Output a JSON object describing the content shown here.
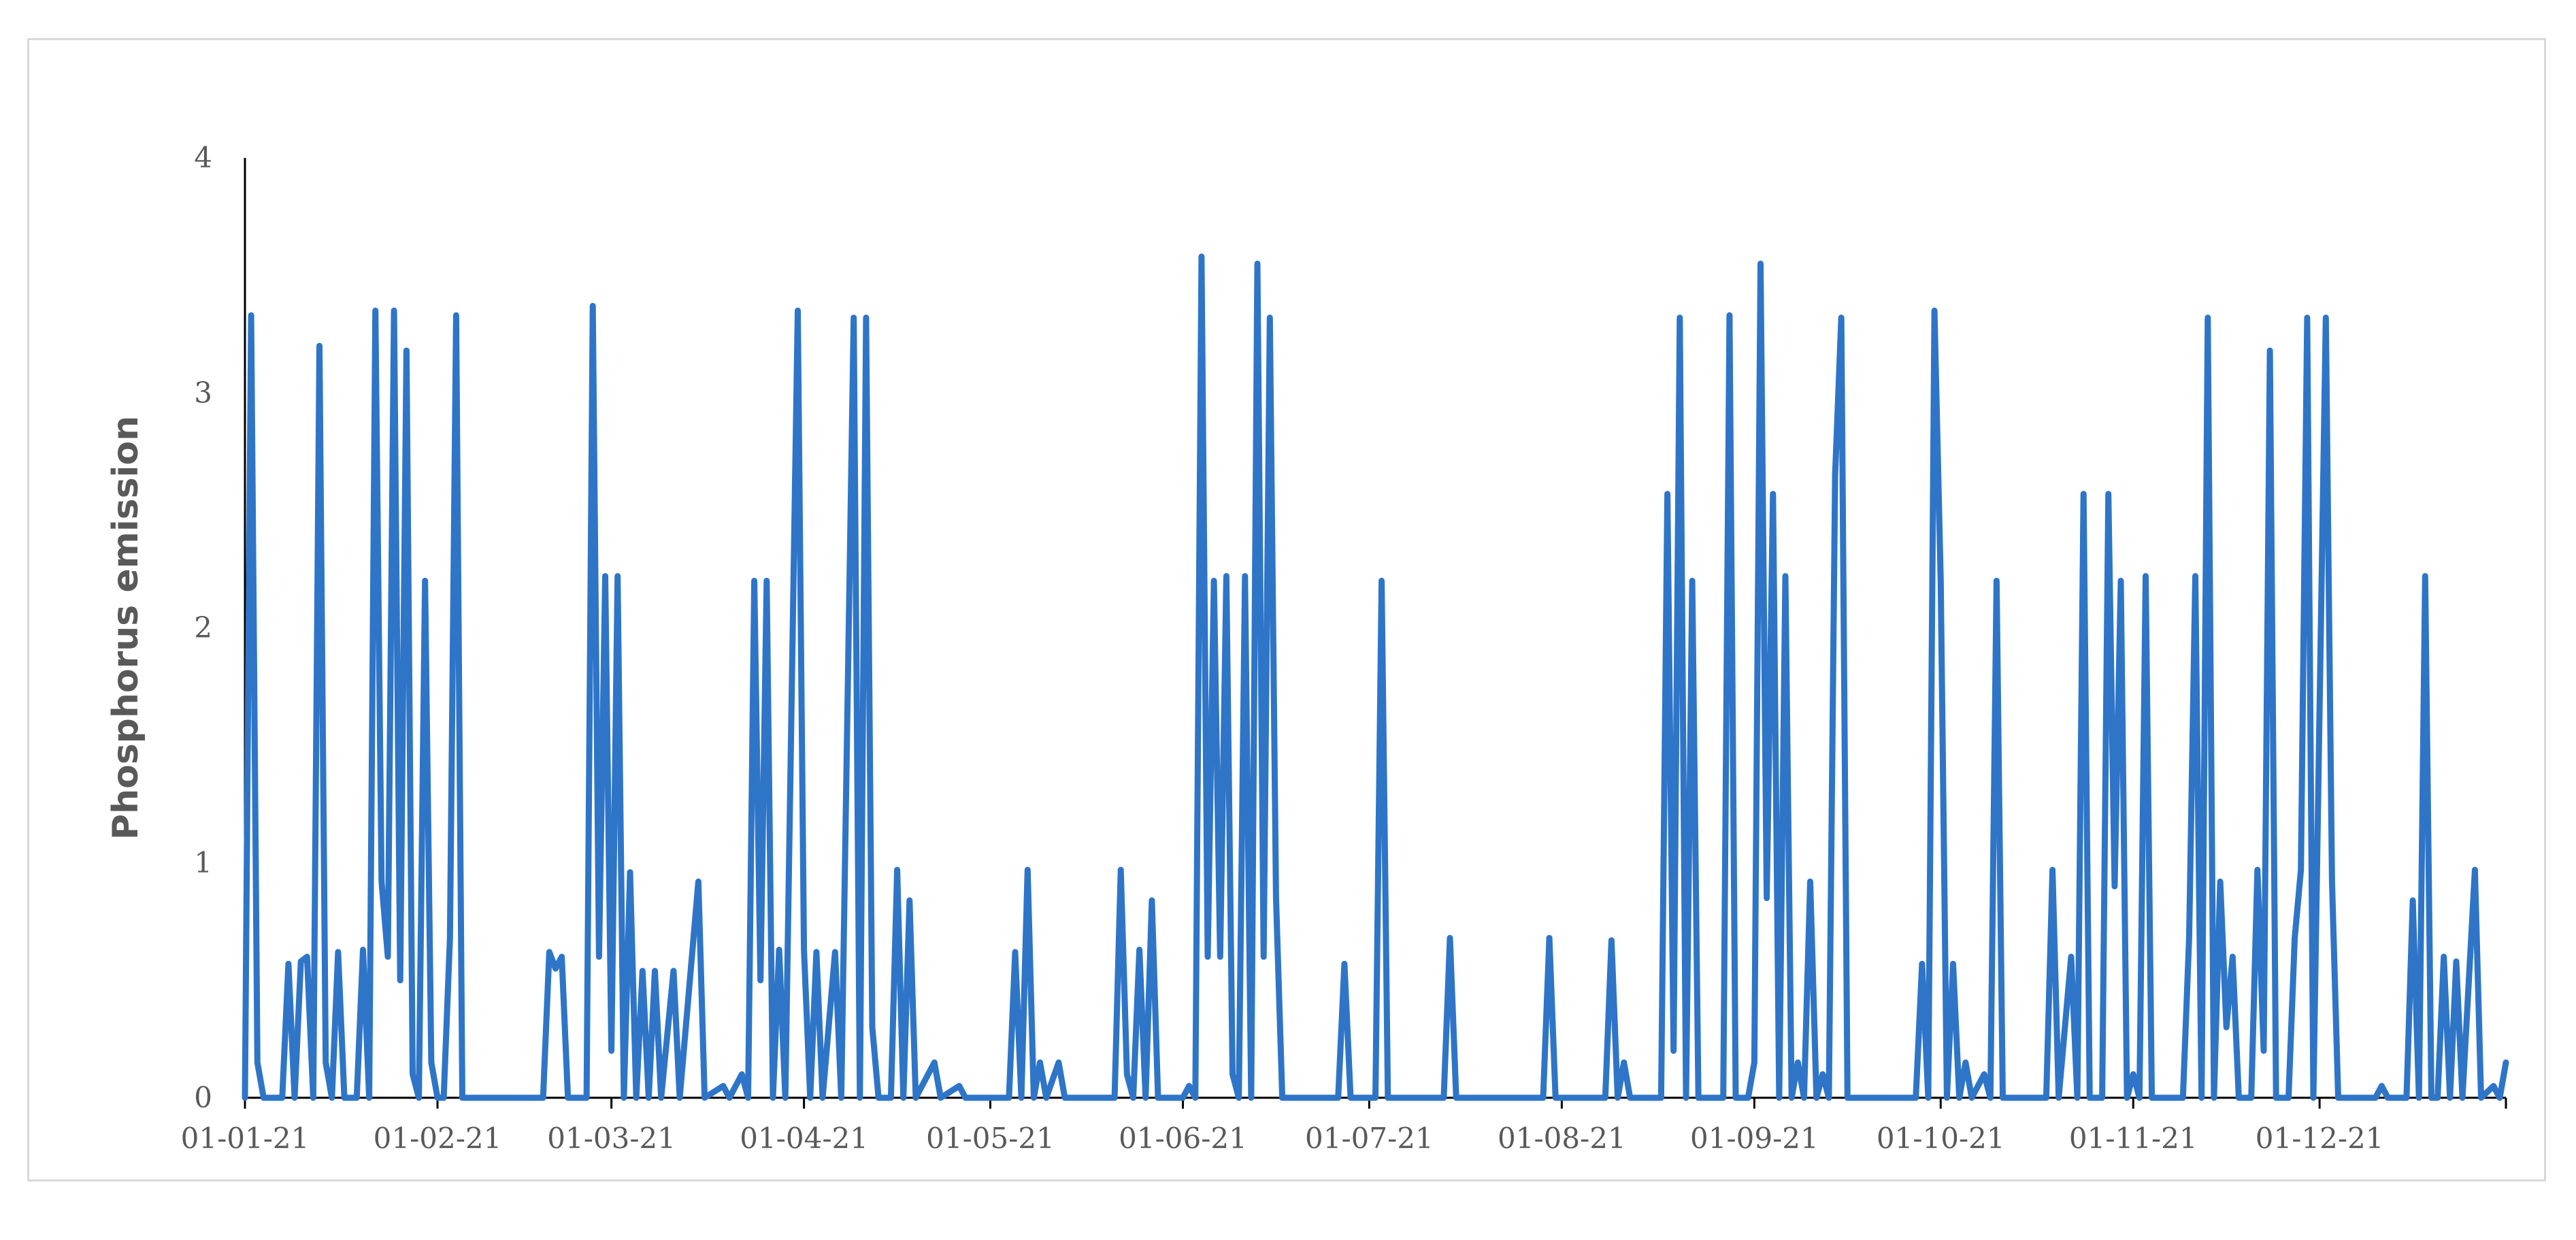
{
  "chart_data": {
    "type": "line",
    "title": "",
    "xlabel": "",
    "ylabel": "Phosphorus emission",
    "ylim": [
      0,
      4
    ],
    "yticks": [
      0,
      1,
      2,
      3,
      4
    ],
    "xlim": [
      "2021-01-01",
      "2021-12-31"
    ],
    "xticks": [
      "2021-01-01",
      "2021-02-01",
      "2021-03-01",
      "2021-04-01",
      "2021-05-01",
      "2021-06-01",
      "2021-07-01",
      "2021-08-01",
      "2021-09-01",
      "2021-10-01",
      "2021-11-01",
      "2021-12-01"
    ],
    "xtick_labels": [
      "01-01-21",
      "01-02-21",
      "01-03-21",
      "01-04-21",
      "01-05-21",
      "01-06-21",
      "01-07-21",
      "01-08-21",
      "01-09-21",
      "01-10-21",
      "01-11-21",
      "01-12-21"
    ],
    "grid": false,
    "legend": "none",
    "series": [
      {
        "color": "#2e75c8",
        "points": [
          [
            "2021-01-01",
            0
          ],
          [
            "2021-01-02",
            3.33
          ],
          [
            "2021-01-03",
            0.15
          ],
          [
            "2021-01-04",
            0
          ],
          [
            "2021-01-07",
            0
          ],
          [
            "2021-01-08",
            0.57
          ],
          [
            "2021-01-09",
            0
          ],
          [
            "2021-01-10",
            0.58
          ],
          [
            "2021-01-11",
            0.6
          ],
          [
            "2021-01-12",
            0
          ],
          [
            "2021-01-13",
            3.2
          ],
          [
            "2021-01-14",
            0.15
          ],
          [
            "2021-01-15",
            0
          ],
          [
            "2021-01-16",
            0.62
          ],
          [
            "2021-01-17",
            0
          ],
          [
            "2021-01-19",
            0
          ],
          [
            "2021-01-20",
            0.63
          ],
          [
            "2021-01-21",
            0
          ],
          [
            "2021-01-22",
            3.35
          ],
          [
            "2021-01-23",
            0.92
          ],
          [
            "2021-01-24",
            0.6
          ],
          [
            "2021-01-25",
            3.35
          ],
          [
            "2021-01-26",
            0.5
          ],
          [
            "2021-01-27",
            3.18
          ],
          [
            "2021-01-28",
            0.1
          ],
          [
            "2021-01-29",
            0
          ],
          [
            "2021-01-30",
            2.2
          ],
          [
            "2021-01-31",
            0.15
          ],
          [
            "2021-02-01",
            0
          ],
          [
            "2021-02-02",
            0
          ],
          [
            "2021-02-03",
            0.68
          ],
          [
            "2021-02-04",
            3.33
          ],
          [
            "2021-02-05",
            0
          ],
          [
            "2021-02-18",
            0
          ],
          [
            "2021-02-19",
            0.62
          ],
          [
            "2021-02-20",
            0.55
          ],
          [
            "2021-02-21",
            0.6
          ],
          [
            "2021-02-22",
            0
          ],
          [
            "2021-02-25",
            0
          ],
          [
            "2021-02-26",
            3.37
          ],
          [
            "2021-02-27",
            0.6
          ],
          [
            "2021-02-28",
            2.22
          ],
          [
            "2021-03-01",
            0.2
          ],
          [
            "2021-03-02",
            2.22
          ],
          [
            "2021-03-03",
            0
          ],
          [
            "2021-03-04",
            0.96
          ],
          [
            "2021-03-05",
            0
          ],
          [
            "2021-03-06",
            0.54
          ],
          [
            "2021-03-07",
            0
          ],
          [
            "2021-03-08",
            0.54
          ],
          [
            "2021-03-09",
            0
          ],
          [
            "2021-03-11",
            0.54
          ],
          [
            "2021-03-12",
            0
          ],
          [
            "2021-03-15",
            0.92
          ],
          [
            "2021-03-16",
            0
          ],
          [
            "2021-03-19",
            0.05
          ],
          [
            "2021-03-20",
            0
          ],
          [
            "2021-03-22",
            0.1
          ],
          [
            "2021-03-23",
            0
          ],
          [
            "2021-03-24",
            2.2
          ],
          [
            "2021-03-25",
            0.5
          ],
          [
            "2021-03-26",
            2.2
          ],
          [
            "2021-03-27",
            0
          ],
          [
            "2021-03-28",
            0.63
          ],
          [
            "2021-03-29",
            0
          ],
          [
            "2021-03-31",
            3.35
          ],
          [
            "2021-04-01",
            0.63
          ],
          [
            "2021-04-02",
            0
          ],
          [
            "2021-04-03",
            0.62
          ],
          [
            "2021-04-04",
            0
          ],
          [
            "2021-04-06",
            0.62
          ],
          [
            "2021-04-07",
            0
          ],
          [
            "2021-04-09",
            3.32
          ],
          [
            "2021-04-10",
            0
          ],
          [
            "2021-04-11",
            3.32
          ],
          [
            "2021-04-12",
            0.3
          ],
          [
            "2021-04-13",
            0
          ],
          [
            "2021-04-15",
            0
          ],
          [
            "2021-04-16",
            0.97
          ],
          [
            "2021-04-17",
            0
          ],
          [
            "2021-04-18",
            0.84
          ],
          [
            "2021-04-19",
            0
          ],
          [
            "2021-04-22",
            0.15
          ],
          [
            "2021-04-23",
            0
          ],
          [
            "2021-04-26",
            0.05
          ],
          [
            "2021-04-27",
            0
          ],
          [
            "2021-05-04",
            0
          ],
          [
            "2021-05-05",
            0.62
          ],
          [
            "2021-05-06",
            0
          ],
          [
            "2021-05-07",
            0.97
          ],
          [
            "2021-05-08",
            0
          ],
          [
            "2021-05-09",
            0.15
          ],
          [
            "2021-05-10",
            0
          ],
          [
            "2021-05-12",
            0.15
          ],
          [
            "2021-05-13",
            0
          ],
          [
            "2021-05-21",
            0
          ],
          [
            "2021-05-22",
            0.97
          ],
          [
            "2021-05-23",
            0.1
          ],
          [
            "2021-05-24",
            0
          ],
          [
            "2021-05-25",
            0.63
          ],
          [
            "2021-05-26",
            0
          ],
          [
            "2021-05-27",
            0.84
          ],
          [
            "2021-05-28",
            0
          ],
          [
            "2021-06-01",
            0
          ],
          [
            "2021-06-02",
            0.05
          ],
          [
            "2021-06-03",
            0
          ],
          [
            "2021-06-04",
            3.58
          ],
          [
            "2021-06-05",
            0.6
          ],
          [
            "2021-06-06",
            2.2
          ],
          [
            "2021-06-07",
            0.6
          ],
          [
            "2021-06-08",
            2.22
          ],
          [
            "2021-06-09",
            0.1
          ],
          [
            "2021-06-10",
            0
          ],
          [
            "2021-06-11",
            2.22
          ],
          [
            "2021-06-12",
            0
          ],
          [
            "2021-06-13",
            3.55
          ],
          [
            "2021-06-14",
            0.6
          ],
          [
            "2021-06-15",
            3.32
          ],
          [
            "2021-06-16",
            0.85
          ],
          [
            "2021-06-17",
            0
          ],
          [
            "2021-06-26",
            0
          ],
          [
            "2021-06-27",
            0.57
          ],
          [
            "2021-06-28",
            0
          ],
          [
            "2021-07-02",
            0
          ],
          [
            "2021-07-03",
            2.2
          ],
          [
            "2021-07-04",
            0
          ],
          [
            "2021-07-13",
            0
          ],
          [
            "2021-07-14",
            0.68
          ],
          [
            "2021-07-15",
            0
          ],
          [
            "2021-07-29",
            0
          ],
          [
            "2021-07-30",
            0.68
          ],
          [
            "2021-07-31",
            0
          ],
          [
            "2021-08-08",
            0
          ],
          [
            "2021-08-09",
            0.67
          ],
          [
            "2021-08-10",
            0
          ],
          [
            "2021-08-11",
            0.15
          ],
          [
            "2021-08-12",
            0
          ],
          [
            "2021-08-17",
            0
          ],
          [
            "2021-08-18",
            2.57
          ],
          [
            "2021-08-19",
            0.2
          ],
          [
            "2021-08-20",
            3.32
          ],
          [
            "2021-08-21",
            0
          ],
          [
            "2021-08-22",
            2.2
          ],
          [
            "2021-08-23",
            0
          ],
          [
            "2021-08-27",
            0
          ],
          [
            "2021-08-28",
            3.33
          ],
          [
            "2021-08-29",
            0
          ],
          [
            "2021-08-31",
            0
          ],
          [
            "2021-09-01",
            0.15
          ],
          [
            "2021-09-02",
            3.55
          ],
          [
            "2021-09-03",
            0.85
          ],
          [
            "2021-09-04",
            2.57
          ],
          [
            "2021-09-05",
            0
          ],
          [
            "2021-09-06",
            2.22
          ],
          [
            "2021-09-07",
            0
          ],
          [
            "2021-09-08",
            0.15
          ],
          [
            "2021-09-09",
            0
          ],
          [
            "2021-09-10",
            0.92
          ],
          [
            "2021-09-11",
            0
          ],
          [
            "2021-09-12",
            0.1
          ],
          [
            "2021-09-13",
            0
          ],
          [
            "2021-09-14",
            2.65
          ],
          [
            "2021-09-15",
            3.32
          ],
          [
            "2021-09-16",
            0
          ],
          [
            "2021-09-27",
            0
          ],
          [
            "2021-09-28",
            0.57
          ],
          [
            "2021-09-29",
            0
          ],
          [
            "2021-09-30",
            3.35
          ],
          [
            "2021-10-01",
            2.2
          ],
          [
            "2021-10-02",
            0
          ],
          [
            "2021-10-03",
            0.57
          ],
          [
            "2021-10-04",
            0
          ],
          [
            "2021-10-05",
            0.15
          ],
          [
            "2021-10-06",
            0
          ],
          [
            "2021-10-08",
            0.1
          ],
          [
            "2021-10-09",
            0
          ],
          [
            "2021-10-10",
            2.2
          ],
          [
            "2021-10-11",
            0
          ],
          [
            "2021-10-18",
            0
          ],
          [
            "2021-10-19",
            0.97
          ],
          [
            "2021-10-20",
            0
          ],
          [
            "2021-10-22",
            0.6
          ],
          [
            "2021-10-23",
            0
          ],
          [
            "2021-10-24",
            2.57
          ],
          [
            "2021-10-25",
            0
          ],
          [
            "2021-10-27",
            0
          ],
          [
            "2021-10-28",
            2.57
          ],
          [
            "2021-10-29",
            0.9
          ],
          [
            "2021-10-30",
            2.2
          ],
          [
            "2021-10-31",
            0
          ],
          [
            "2021-11-01",
            0.1
          ],
          [
            "2021-11-02",
            0
          ],
          [
            "2021-11-03",
            2.22
          ],
          [
            "2021-11-04",
            0
          ],
          [
            "2021-11-09",
            0
          ],
          [
            "2021-11-10",
            0.68
          ],
          [
            "2021-11-11",
            2.22
          ],
          [
            "2021-11-12",
            0
          ],
          [
            "2021-11-13",
            3.32
          ],
          [
            "2021-11-14",
            0
          ],
          [
            "2021-11-15",
            0.92
          ],
          [
            "2021-11-16",
            0.3
          ],
          [
            "2021-11-17",
            0.6
          ],
          [
            "2021-11-18",
            0
          ],
          [
            "2021-11-20",
            0
          ],
          [
            "2021-11-21",
            0.97
          ],
          [
            "2021-11-22",
            0.2
          ],
          [
            "2021-11-23",
            3.18
          ],
          [
            "2021-11-24",
            0
          ],
          [
            "2021-11-26",
            0
          ],
          [
            "2021-11-27",
            0.68
          ],
          [
            "2021-11-28",
            0.97
          ],
          [
            "2021-11-29",
            3.32
          ],
          [
            "2021-11-30",
            0
          ],
          [
            "2021-12-02",
            3.32
          ],
          [
            "2021-12-03",
            0.92
          ],
          [
            "2021-12-04",
            0
          ],
          [
            "2021-12-10",
            0
          ],
          [
            "2021-12-11",
            0.05
          ],
          [
            "2021-12-12",
            0
          ],
          [
            "2021-12-15",
            0
          ],
          [
            "2021-12-16",
            0.84
          ],
          [
            "2021-12-17",
            0
          ],
          [
            "2021-12-18",
            2.22
          ],
          [
            "2021-12-19",
            0
          ],
          [
            "2021-12-20",
            0
          ],
          [
            "2021-12-21",
            0.6
          ],
          [
            "2021-12-22",
            0
          ],
          [
            "2021-12-23",
            0.58
          ],
          [
            "2021-12-24",
            0
          ],
          [
            "2021-12-26",
            0.97
          ],
          [
            "2021-12-27",
            0
          ],
          [
            "2021-12-29",
            0.05
          ],
          [
            "2021-12-30",
            0
          ],
          [
            "2021-12-31",
            0.15
          ]
        ]
      }
    ]
  }
}
